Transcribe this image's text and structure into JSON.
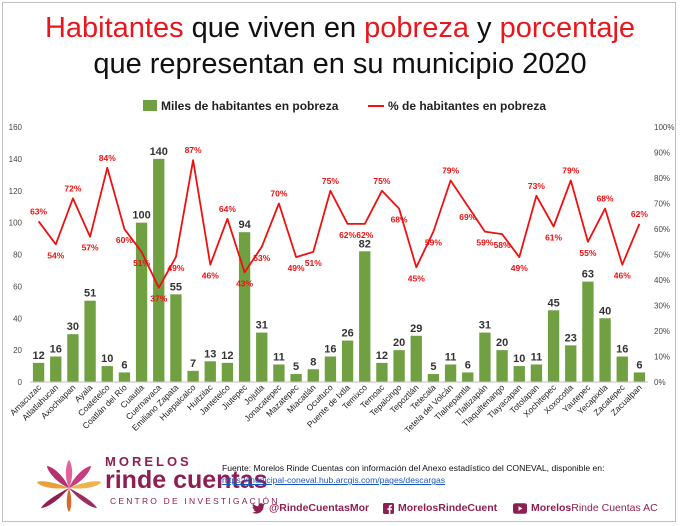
{
  "title": {
    "line1_part1": "Habitantes",
    "line1_part2": " que viven en ",
    "line1_part3": "pobreza",
    "line1_part4": " y ",
    "line1_part5": "porcentaje",
    "line2": "que representan en su municipio 2020"
  },
  "colors": {
    "bar": "#70a042",
    "line": "#ee1111",
    "accent": "#8e1f52",
    "title_red": "#e8171d"
  },
  "chart_data": {
    "type": "bar",
    "categories": [
      "Amacuzac",
      "Atlatlahucan",
      "Axochiapan",
      "Ayala",
      "Coatetelco",
      "Coatlán del Río",
      "Cuautla",
      "Cuernavaca",
      "Emiliano Zapata",
      "Huepalcalco",
      "Huitzilac",
      "Jantetelco",
      "Jiutepec",
      "Jojutla",
      "Jonacatepec",
      "Mazatepec",
      "Miacatlán",
      "Ocuituco",
      "Puente de Ixtla",
      "Temixco",
      "Temoac",
      "Tepalcingo",
      "Tepoztlán",
      "Tetecala",
      "Tetela del Volcán",
      "Tlalnepantla",
      "Tlaltizapán",
      "Tlaquiltenango",
      "Tlayacapan",
      "Totolapan",
      "Xochitepec",
      "Xoxocotla",
      "Yautepec",
      "Yecapixtla",
      "Zacatepec",
      "Zacualpan"
    ],
    "series": [
      {
        "name": "Miles de habitantes en pobreza",
        "type": "bar",
        "axis": "left",
        "values": [
          12,
          16,
          30,
          51,
          10,
          6,
          100,
          140,
          55,
          7,
          13,
          12,
          94,
          31,
          11,
          5,
          8,
          16,
          26,
          82,
          12,
          20,
          29,
          5,
          11,
          6,
          31,
          20,
          10,
          11,
          45,
          23,
          63,
          40,
          16,
          6
        ],
        "labels": [
          "12",
          "16",
          "30",
          "51",
          "10",
          "6",
          "100",
          "140",
          "55",
          "7",
          "13",
          "12",
          "94",
          "31",
          "11",
          "5",
          "8",
          "16",
          "26",
          "82",
          "12",
          "20",
          "29",
          "5",
          "11",
          "6",
          "31",
          "20",
          "10",
          "11",
          "45",
          "23",
          "63",
          "40",
          "16",
          "6"
        ]
      },
      {
        "name": "% de habitantes en pobreza",
        "type": "line",
        "axis": "right",
        "values": [
          63,
          54,
          72,
          57,
          84,
          60,
          51,
          37,
          49,
          87,
          46,
          64,
          43,
          53,
          70,
          49,
          51,
          75,
          62,
          62,
          75,
          68,
          45,
          59,
          79,
          69,
          59,
          58,
          49,
          73,
          61,
          79,
          55,
          68,
          46,
          62
        ],
        "labels": [
          "63%",
          "54%",
          "72%",
          "57%",
          "84%",
          "60%",
          "51%",
          "37%",
          "49%",
          "87%",
          "46%",
          "64%",
          "43%",
          "53%",
          "70%",
          "49%",
          "51%",
          "75%",
          "62%",
          "62%",
          "75%",
          "68%",
          "45%",
          "59%",
          "79%",
          "69%",
          "59%",
          "58%",
          "49%",
          "73%",
          "61%",
          "79%",
          "55%",
          "68%",
          "46%",
          "62%"
        ]
      }
    ],
    "left_axis": {
      "range": [
        0,
        160
      ],
      "ticks": [
        "0",
        "20",
        "40",
        "60",
        "80",
        "100",
        "120",
        "140",
        "160"
      ]
    },
    "right_axis": {
      "range": [
        0,
        100
      ],
      "ticks": [
        "0%",
        "10%",
        "20%",
        "30%",
        "40%",
        "50%",
        "60%",
        "70%",
        "80%",
        "90%",
        "100%"
      ]
    },
    "legend_position": "top",
    "grid": false
  },
  "logo": {
    "top": "MORELOS",
    "main": "rinde cuentas",
    "sub": "CENTRO DE INVESTIGACIÓN",
    "reg": "®"
  },
  "source": {
    "text": "Fuente: Morelos Rinde Cuentas con información del Anexo estadístico del CONEVAL, disponible en: ",
    "link": "https://municipal-coneval.hub.arcgis.com/pages/descargas"
  },
  "social": {
    "twitter": "@RindeCuentasMor",
    "facebook": "MorelosRindeCuent",
    "youtube_bold": "Morelos",
    "youtube_rest": " Rinde Cuentas AC"
  }
}
